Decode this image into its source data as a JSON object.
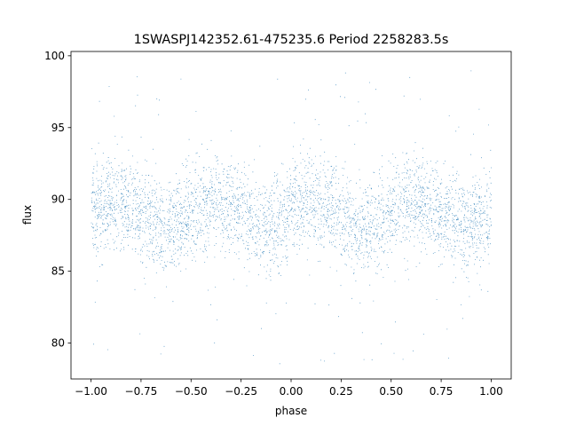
{
  "chart_data": {
    "type": "scatter",
    "title": "1SWASPJ142352.61-475235.6 Period 2258283.5s",
    "xlabel": "phase",
    "ylabel": "flux",
    "xlim": [
      -1.1,
      1.1
    ],
    "ylim": [
      77.5,
      100.3
    ],
    "xticks": [
      -1.0,
      -0.75,
      -0.5,
      -0.25,
      0.0,
      0.25,
      0.5,
      0.75,
      1.0
    ],
    "xtick_labels": [
      "−1.00",
      "−0.75",
      "−0.50",
      "−0.25",
      "0.00",
      "0.25",
      "0.50",
      "0.75",
      "1.00"
    ],
    "yticks": [
      80,
      85,
      90,
      95,
      100
    ],
    "ytick_labels": [
      "80",
      "85",
      "90",
      "95",
      "100"
    ],
    "grid": false,
    "marker_color": "#1f77b4",
    "distribution": {
      "x_range": [
        -1.0,
        1.0
      ],
      "core_center": 89,
      "core_band": [
        85.5,
        92.5
      ],
      "outlier_range": [
        78.5,
        99
      ]
    }
  }
}
